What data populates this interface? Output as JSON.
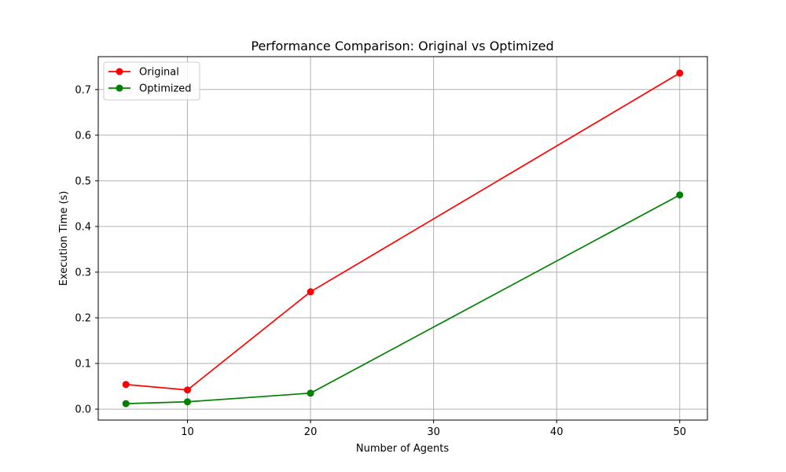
{
  "chart_data": {
    "type": "line",
    "title": "Performance Comparison: Original vs Optimized",
    "xlabel": "Number of Agents",
    "ylabel": "Execution Time (s)",
    "x": [
      5,
      10,
      20,
      50
    ],
    "xlim": [
      2.75,
      52.25
    ],
    "ylim": [
      -0.024,
      0.772
    ],
    "xticks": [
      10,
      20,
      30,
      40,
      50
    ],
    "xtick_labels": [
      "10",
      "20",
      "30",
      "40",
      "50"
    ],
    "yticks": [
      0.0,
      0.1,
      0.2,
      0.3,
      0.4,
      0.5,
      0.6,
      0.7
    ],
    "ytick_labels": [
      "0.0",
      "0.1",
      "0.2",
      "0.3",
      "0.4",
      "0.5",
      "0.6",
      "0.7"
    ],
    "grid": true,
    "legend_position": "top-left",
    "series": [
      {
        "name": "Original",
        "color": "#ff0000",
        "values": [
          0.054,
          0.042,
          0.257,
          0.736
        ]
      },
      {
        "name": "Optimized",
        "color": "#008000",
        "values": [
          0.012,
          0.016,
          0.035,
          0.469
        ]
      }
    ]
  }
}
